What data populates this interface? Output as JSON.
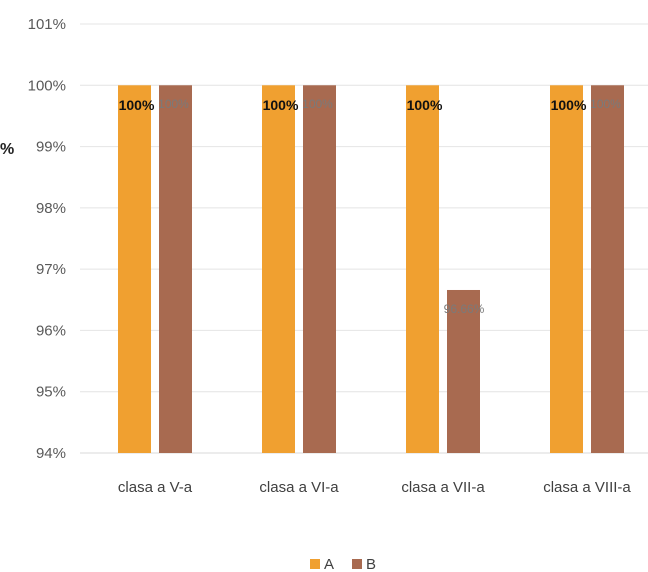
{
  "colors": {
    "A": "#F0A030",
    "B": "#A86A50",
    "grid": "#E4E4E4"
  },
  "chart_data": {
    "type": "bar",
    "categories": [
      "clasa a V-a",
      "clasa a VI-a",
      "clasa a VII-a",
      "clasa a VIII-a"
    ],
    "series": [
      {
        "name": "A",
        "values": [
          100,
          100,
          100,
          100
        ],
        "labels": [
          "100%",
          "100%",
          "100%",
          "100%"
        ]
      },
      {
        "name": "B",
        "values": [
          100,
          100,
          96.66,
          100
        ],
        "labels": [
          "100%",
          "100%",
          "",
          "100%"
        ]
      }
    ],
    "annotations": [
      "96.66%"
    ],
    "ylim": [
      94,
      101
    ],
    "yticks": [
      "94%",
      "95%",
      "96%",
      "97%",
      "98%",
      "99%",
      "100%",
      "101%"
    ],
    "ylabel_fragment": "%",
    "grid": true,
    "legend": "bottom-center"
  }
}
